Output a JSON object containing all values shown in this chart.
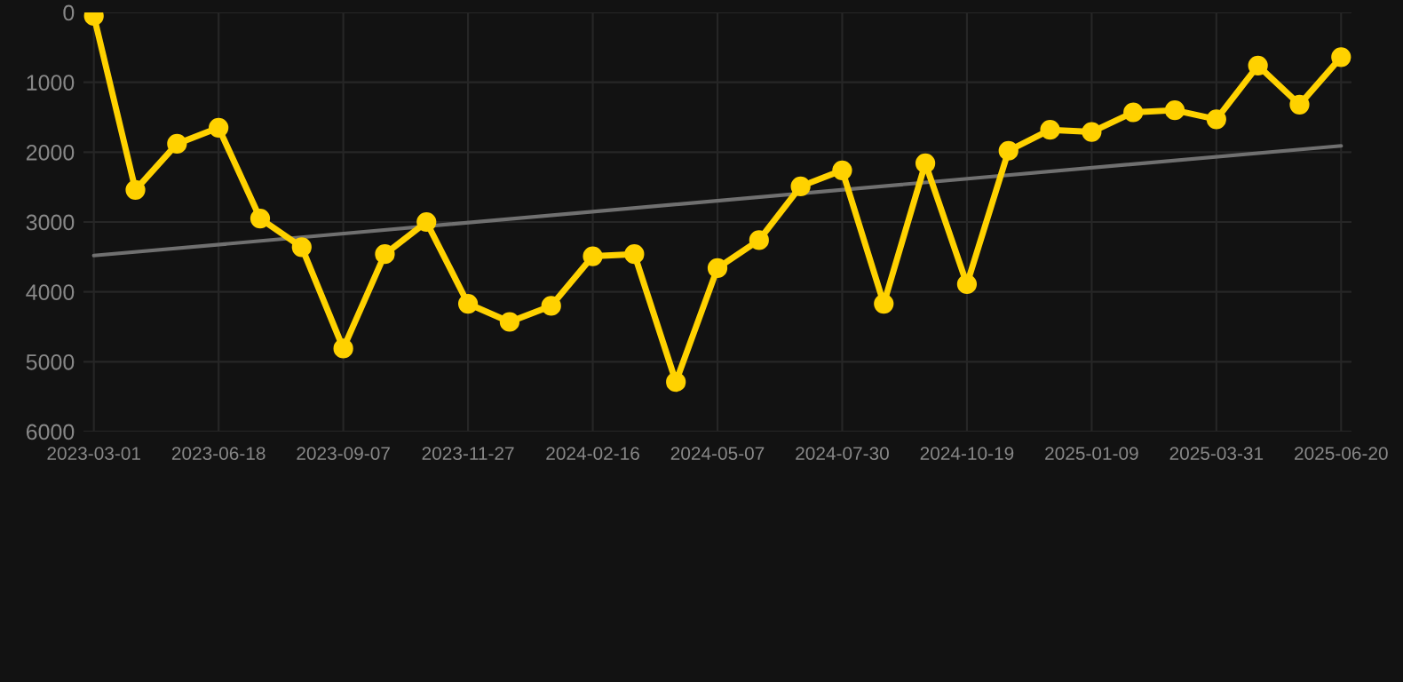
{
  "chart_data": {
    "type": "line",
    "categories": [
      "2023-03-01",
      null,
      null,
      "2023-06-18",
      null,
      null,
      "2023-09-07",
      null,
      null,
      "2023-11-27",
      null,
      null,
      "2024-02-16",
      null,
      null,
      "2024-05-07",
      null,
      null,
      "2024-07-30",
      null,
      null,
      "2024-10-19",
      null,
      null,
      "2025-01-09",
      null,
      null,
      "2025-03-31",
      null,
      null,
      "2025-06-20"
    ],
    "series": [
      {
        "color": "#ffd200",
        "marker": "circle",
        "values": [
          50,
          2540,
          1880,
          1650,
          2950,
          3360,
          4810,
          3460,
          3000,
          4170,
          4430,
          4200,
          3490,
          3460,
          5290,
          3660,
          3260,
          2490,
          2260,
          4170,
          2160,
          3890,
          1980,
          1680,
          1710,
          1430,
          1400,
          1530,
          760,
          1320,
          640
        ]
      },
      {
        "color": "#707070",
        "marker": "none",
        "values": [
          3480,
          null,
          null,
          null,
          null,
          null,
          null,
          null,
          null,
          null,
          null,
          null,
          null,
          null,
          null,
          null,
          null,
          null,
          null,
          null,
          null,
          null,
          null,
          null,
          null,
          null,
          null,
          null,
          null,
          null,
          1910
        ]
      }
    ],
    "ylim": [
      6000,
      0
    ],
    "yticks": [
      0,
      1000,
      2000,
      3000,
      4000,
      5000,
      6000
    ],
    "grid": true,
    "legend": false
  }
}
